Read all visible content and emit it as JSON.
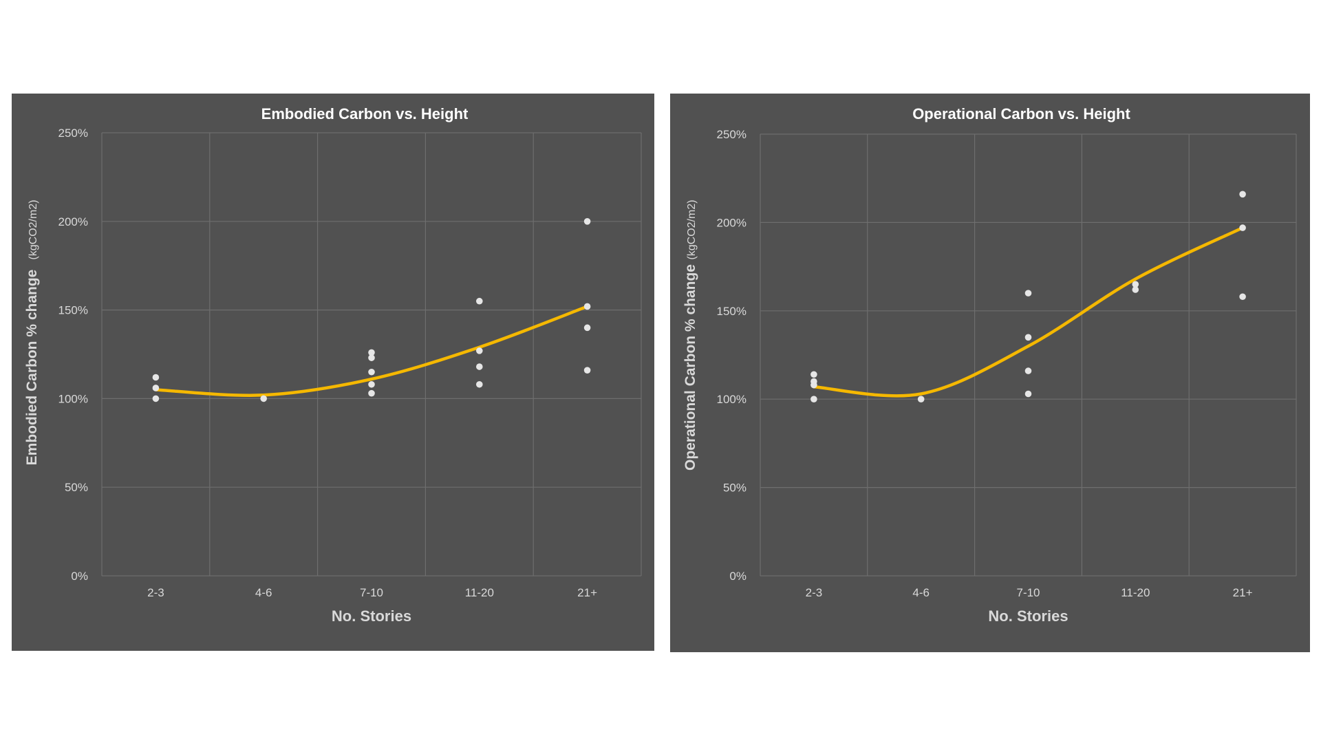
{
  "chart_data": [
    {
      "type": "scatter",
      "title": "Embodied Carbon vs. Height",
      "xlabel": "No. Stories",
      "ylabel": "Embodied Carbon % change",
      "yunit": "(kgCO2/m2)",
      "categories": [
        "2-3",
        "4-6",
        "7-10",
        "11-20",
        "21+"
      ],
      "ylim": [
        0,
        250
      ],
      "yticks": [
        0,
        50,
        100,
        150,
        200,
        250
      ],
      "ytick_labels": [
        "0%",
        "50%",
        "100%",
        "150%",
        "200%",
        "250%"
      ],
      "points": [
        {
          "category": "2-3",
          "values": [
            100,
            106,
            112
          ]
        },
        {
          "category": "4-6",
          "values": [
            100
          ]
        },
        {
          "category": "7-10",
          "values": [
            103,
            108,
            115,
            123,
            126
          ]
        },
        {
          "category": "11-20",
          "values": [
            108,
            118,
            127,
            155
          ]
        },
        {
          "category": "21+",
          "values": [
            116,
            140,
            152,
            200
          ]
        }
      ],
      "trendline": {
        "type": "polynomial",
        "values": [
          105,
          102,
          111,
          129,
          152
        ]
      }
    },
    {
      "type": "scatter",
      "title": "Operational Carbon vs. Height",
      "xlabel": "No. Stories",
      "ylabel": "Operational Carbon % change",
      "yunit": "(kgCO2/m2)",
      "categories": [
        "2-3",
        "4-6",
        "7-10",
        "11-20",
        "21+"
      ],
      "ylim": [
        0,
        250
      ],
      "yticks": [
        0,
        50,
        100,
        150,
        200,
        250
      ],
      "ytick_labels": [
        "0%",
        "50%",
        "100%",
        "150%",
        "200%",
        "250%"
      ],
      "points": [
        {
          "category": "2-3",
          "values": [
            100,
            108,
            110,
            114
          ]
        },
        {
          "category": "4-6",
          "values": [
            100
          ]
        },
        {
          "category": "7-10",
          "values": [
            103,
            116,
            135,
            160
          ]
        },
        {
          "category": "11-20",
          "values": [
            162,
            165
          ]
        },
        {
          "category": "21+",
          "values": [
            158,
            197,
            216
          ]
        }
      ],
      "trendline": {
        "type": "polynomial",
        "values": [
          107,
          103,
          130,
          168,
          197
        ]
      }
    }
  ],
  "colors": {
    "panel_bg": "#515151",
    "grid": "#6e6e6e",
    "point": "#e6e6e6",
    "trend": "#f5b800"
  }
}
